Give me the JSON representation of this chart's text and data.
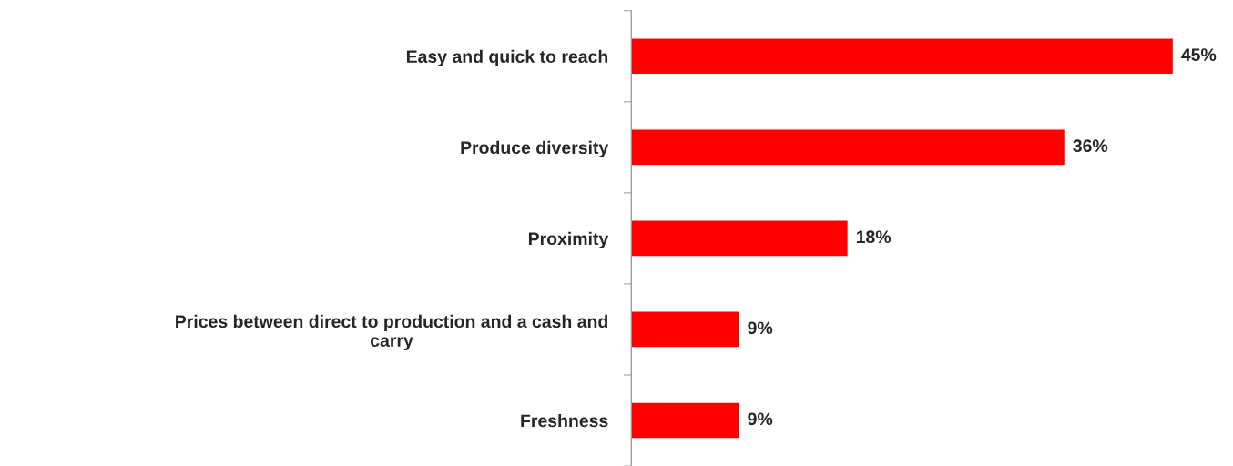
{
  "chart_data": {
    "type": "bar",
    "orientation": "horizontal",
    "categories": [
      "Easy and quick to reach",
      "Produce diversity",
      "Proximity",
      "Prices between direct to production and a cash and\ncarry",
      "Freshness"
    ],
    "values": [
      45,
      36,
      18,
      9,
      9
    ],
    "value_labels": [
      "45%",
      "36%",
      "18%",
      "9%",
      "9%"
    ],
    "color": "#ff0000",
    "grid": false,
    "legend": false,
    "tick_labels": "y"
  }
}
